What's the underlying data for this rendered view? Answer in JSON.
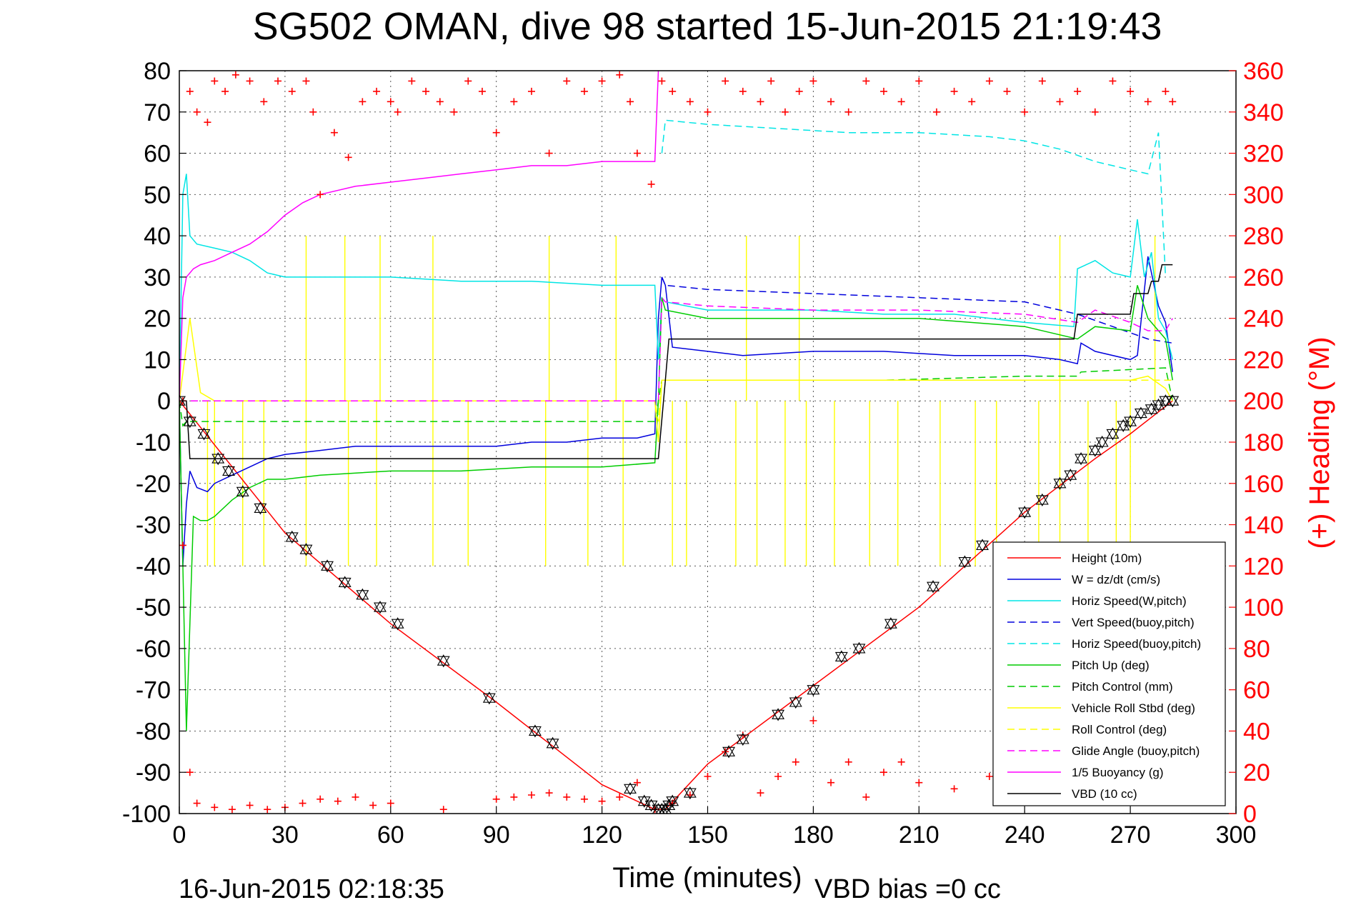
{
  "chart_data": {
    "type": "line",
    "title": "SG502 OMAN, dive 98 started 15-Jun-2015 21:19:43",
    "xlabel": "Time (minutes)",
    "ylabel_right": "(+) Heading (°M)",
    "footer_date": "16-Jun-2015 02:18:35",
    "footer_note": "VBD bias =0 cc",
    "xlim": [
      0,
      300
    ],
    "ylim": [
      -100,
      80
    ],
    "ylim_right": [
      0,
      360
    ],
    "x_ticks": [
      0,
      30,
      60,
      90,
      120,
      150,
      180,
      210,
      240,
      270,
      300
    ],
    "y_ticks": [
      -100,
      -90,
      -80,
      -70,
      -60,
      -50,
      -40,
      -30,
      -20,
      -10,
      0,
      10,
      20,
      30,
      40,
      50,
      60,
      70,
      80
    ],
    "y_ticks_right": [
      0,
      20,
      40,
      60,
      80,
      100,
      120,
      140,
      160,
      180,
      200,
      220,
      240,
      260,
      280,
      300,
      320,
      340,
      360
    ],
    "grid": true,
    "legend_position": "bottom-right",
    "colors": {
      "height": "#ff0000",
      "w": "#0000dd",
      "horiz_speed": "#00e5e5",
      "pitch": "#00cc00",
      "roll": "#ffff00",
      "glide": "#ff00ff",
      "vbd": "#000000",
      "heading": "#ff0000"
    },
    "series": [
      {
        "name": "Height (10m)",
        "color": "#ff0000",
        "dash": false,
        "x": [
          0,
          30,
          60,
          90,
          120,
          135,
          138,
          150,
          180,
          210,
          240,
          260,
          270,
          282
        ],
        "y": [
          0,
          -32,
          -54,
          -73,
          -93,
          -99,
          -99,
          -88,
          -69,
          -50,
          -27,
          -14,
          -8,
          0
        ]
      },
      {
        "name": "W = dz/dt (cm/s)",
        "color": "#0000dd",
        "dash": false,
        "x": [
          0,
          1,
          2,
          3,
          5,
          8,
          10,
          15,
          20,
          25,
          30,
          40,
          50,
          60,
          70,
          80,
          90,
          100,
          110,
          120,
          130,
          135,
          136,
          137,
          138,
          140,
          150,
          160,
          180,
          200,
          220,
          240,
          250,
          255,
          256,
          260,
          270,
          272,
          275,
          278,
          280,
          282
        ],
        "y": [
          0,
          -40,
          -25,
          -17,
          -21,
          -22,
          -20,
          -18,
          -16,
          -14,
          -13,
          -12,
          -11,
          -11,
          -11,
          -11,
          -11,
          -10,
          -10,
          -9,
          -9,
          -8,
          20,
          30,
          28,
          13,
          12,
          11,
          12,
          12,
          11,
          11,
          10,
          9,
          14,
          12,
          10,
          11,
          35,
          23,
          19,
          7
        ]
      },
      {
        "name": "Horiz Speed(W,pitch)",
        "color": "#00e5e5",
        "dash": false,
        "x": [
          0,
          1,
          2,
          3,
          5,
          10,
          15,
          20,
          25,
          30,
          40,
          60,
          80,
          100,
          120,
          130,
          135,
          136,
          137,
          138,
          150,
          180,
          200,
          220,
          240,
          254,
          255,
          260,
          265,
          270,
          272,
          274,
          276,
          278,
          280,
          282
        ],
        "y": [
          0,
          50,
          55,
          40,
          38,
          37,
          36,
          34,
          31,
          30,
          30,
          30,
          29,
          29,
          28,
          28,
          28,
          10,
          25,
          24,
          22,
          22,
          21,
          21,
          19,
          18,
          32,
          34,
          31,
          30,
          44,
          30,
          36,
          20,
          17,
          10
        ]
      },
      {
        "name": "Vert Speed(buoy,pitch)",
        "color": "#0000dd",
        "dash": true,
        "x": [
          137,
          138,
          150,
          180,
          210,
          240,
          255,
          265,
          275,
          282
        ],
        "y": [
          30,
          28,
          27,
          26,
          25,
          24,
          21,
          18,
          15,
          14
        ]
      },
      {
        "name": "Horiz Speed(buoy,pitch)",
        "color": "#00e5e5",
        "dash": true,
        "x": [
          137,
          138,
          150,
          170,
          190,
          210,
          230,
          240,
          250,
          260,
          265,
          270,
          275,
          278,
          280
        ],
        "y": [
          60,
          68,
          67,
          66,
          65,
          65,
          64,
          63,
          61,
          58,
          57,
          56,
          55,
          65,
          30
        ]
      },
      {
        "name": "Pitch Up (deg)",
        "color": "#00cc00",
        "dash": false,
        "x": [
          0,
          2,
          4,
          6,
          8,
          10,
          15,
          20,
          25,
          30,
          40,
          60,
          80,
          100,
          120,
          135,
          136,
          137,
          138,
          150,
          180,
          210,
          240,
          255,
          260,
          270,
          272,
          275,
          280,
          282
        ],
        "y": [
          0,
          -80,
          -28,
          -29,
          -29,
          -28,
          -24,
          -21,
          -19,
          -19,
          -18,
          -17,
          -17,
          -16,
          -16,
          -15,
          0,
          25,
          22,
          20,
          20,
          20,
          18,
          15,
          18,
          17,
          28,
          20,
          15,
          5
        ]
      },
      {
        "name": "Pitch Control (mm)",
        "color": "#00cc00",
        "dash": true,
        "x": [
          0,
          1,
          2,
          135,
          136,
          137,
          138,
          200,
          240,
          255,
          256,
          280,
          282
        ],
        "y": [
          0,
          -6,
          -5,
          -5,
          0,
          5,
          5,
          5,
          6,
          6,
          7,
          8,
          0
        ]
      },
      {
        "name": "Vehicle Roll Stbd (deg)",
        "color": "#ffff00",
        "dash": false,
        "x": [
          0,
          3,
          6,
          10,
          20,
          40,
          60,
          80,
          100,
          120,
          130,
          135,
          136,
          137,
          138,
          150,
          180,
          210,
          240,
          260,
          270,
          275,
          280,
          282
        ],
        "y": [
          0,
          20,
          2,
          0,
          0,
          0,
          0,
          0,
          0,
          0,
          0,
          0,
          -10,
          5,
          5,
          5,
          5,
          5,
          5,
          5,
          5,
          6,
          3,
          0
        ]
      },
      {
        "name": "Roll Control (deg)",
        "color": "#ffff00",
        "dash": true,
        "x": [
          0,
          135,
          136,
          137,
          282
        ],
        "y": [
          0,
          0,
          -5,
          5,
          5
        ]
      },
      {
        "name": "Glide Angle (buoy,pitch)",
        "color": "#ff00ff",
        "dash": true,
        "x": [
          0,
          135,
          136,
          137,
          138,
          150,
          180,
          210,
          240,
          255,
          260,
          270,
          275,
          280,
          282
        ],
        "y": [
          0,
          0,
          0,
          25,
          24,
          23,
          22,
          22,
          21,
          19,
          22,
          19,
          17,
          17,
          20
        ]
      },
      {
        "name": "1/5 Buoyancy (g)",
        "color": "#ff00ff",
        "dash": false,
        "x": [
          0,
          1,
          2,
          4,
          6,
          10,
          15,
          20,
          25,
          30,
          35,
          40,
          50,
          60,
          70,
          80,
          90,
          100,
          110,
          120,
          130,
          135,
          136
        ],
        "y": [
          0,
          25,
          30,
          32,
          33,
          34,
          36,
          38,
          41,
          45,
          48,
          50,
          52,
          53,
          54,
          55,
          56,
          57,
          57,
          58,
          58,
          58,
          80
        ]
      },
      {
        "name": "VBD (10 cc)",
        "color": "#000000",
        "dash": false,
        "x": [
          0,
          2,
          3,
          135,
          136,
          138,
          139,
          254,
          255,
          270,
          271,
          275,
          276,
          278,
          279,
          282
        ],
        "y": [
          0,
          0,
          -14,
          -14,
          -14,
          5,
          15,
          15,
          21,
          21,
          26,
          26,
          29,
          29,
          33,
          33
        ]
      }
    ],
    "spikes": [
      {
        "name": "Vehicle Roll Stbd (deg)",
        "color": "#ffff00",
        "x": [
          8,
          10,
          18,
          24,
          36,
          48,
          56,
          72,
          82,
          104,
          116,
          126,
          140,
          144,
          158,
          164,
          172,
          178,
          186,
          196,
          204,
          216,
          226,
          232,
          244,
          250,
          258,
          266,
          270
        ],
        "y_top": 0,
        "y_bottom": -40
      },
      {
        "name": "Vehicle Roll Stbd (deg)",
        "color": "#ffff00",
        "x": [
          36,
          47,
          57,
          72,
          105,
          124,
          161,
          176,
          250,
          277
        ],
        "y_top": 40,
        "y_bottom": 0
      }
    ],
    "heading": {
      "name": "(+) Heading (°M)",
      "color": "#ff0000",
      "x": [
        1,
        3,
        5,
        8,
        10,
        13,
        16,
        20,
        24,
        28,
        32,
        36,
        38,
        40,
        44,
        48,
        52,
        56,
        60,
        62,
        66,
        70,
        74,
        78,
        82,
        86,
        90,
        95,
        100,
        105,
        110,
        115,
        120,
        125,
        128,
        130,
        134,
        137,
        140,
        145,
        150,
        155,
        160,
        165,
        168,
        172,
        176,
        180,
        185,
        190,
        195,
        200,
        205,
        210,
        215,
        220,
        225,
        230,
        235,
        240,
        245,
        250,
        255,
        260,
        265,
        270,
        275,
        280,
        282
      ],
      "y": [
        200,
        350,
        340,
        335,
        355,
        350,
        358,
        355,
        345,
        355,
        350,
        355,
        340,
        300,
        330,
        318,
        345,
        350,
        345,
        340,
        355,
        350,
        345,
        340,
        355,
        350,
        330,
        345,
        350,
        320,
        355,
        350,
        355,
        358,
        345,
        320,
        305,
        355,
        350,
        345,
        340,
        355,
        350,
        345,
        355,
        340,
        350,
        355,
        345,
        340,
        355,
        350,
        345,
        355,
        340,
        350,
        345,
        355,
        350,
        340,
        355,
        345,
        350,
        340,
        355,
        350,
        345,
        350,
        345
      ],
      "x_bottom": [
        1,
        3,
        5,
        10,
        15,
        20,
        25,
        30,
        35,
        40,
        45,
        50,
        55,
        60,
        75,
        90,
        95,
        100,
        105,
        110,
        115,
        120,
        125,
        130,
        135,
        140,
        145,
        150,
        155,
        160,
        165,
        170,
        175,
        180,
        185,
        190,
        195,
        200,
        205,
        210,
        220,
        230,
        235,
        240,
        245,
        250,
        255,
        260,
        265,
        270,
        275,
        280
      ],
      "y_bottom": [
        130,
        20,
        5,
        3,
        2,
        4,
        2,
        3,
        5,
        7,
        6,
        8,
        4,
        5,
        2,
        7,
        8,
        9,
        10,
        8,
        7,
        6,
        8,
        15,
        2,
        5,
        9,
        18,
        30,
        38,
        10,
        18,
        25,
        45,
        15,
        25,
        8,
        20,
        25,
        15,
        12,
        18,
        22,
        15,
        20,
        24,
        28,
        22,
        30,
        26,
        18,
        12
      ]
    },
    "markers": {
      "name": "Height (10m) samples",
      "x": [
        0,
        3,
        7,
        11,
        14,
        18,
        23,
        32,
        36,
        42,
        47,
        52,
        57,
        62,
        75,
        88,
        101,
        106,
        128,
        132,
        134,
        136,
        137,
        138,
        139,
        140,
        145,
        156,
        160,
        170,
        175,
        180,
        188,
        193,
        202,
        214,
        223,
        228,
        240,
        245,
        250,
        253,
        256,
        260,
        262,
        265,
        268,
        270,
        273,
        276,
        278,
        280,
        282
      ],
      "y": [
        0,
        -5,
        -8,
        -14,
        -17,
        -22,
        -26,
        -33,
        -36,
        -40,
        -44,
        -47,
        -50,
        -54,
        -63,
        -72,
        -80,
        -83,
        -94,
        -97,
        -98,
        -99,
        -99,
        -99,
        -98,
        -97,
        -95,
        -85,
        -82,
        -76,
        -73,
        -70,
        -62,
        -60,
        -54,
        -45,
        -39,
        -35,
        -27,
        -24,
        -20,
        -18,
        -14,
        -12,
        -10,
        -8,
        -6,
        -5,
        -3,
        -2,
        -1,
        0,
        0
      ]
    }
  }
}
